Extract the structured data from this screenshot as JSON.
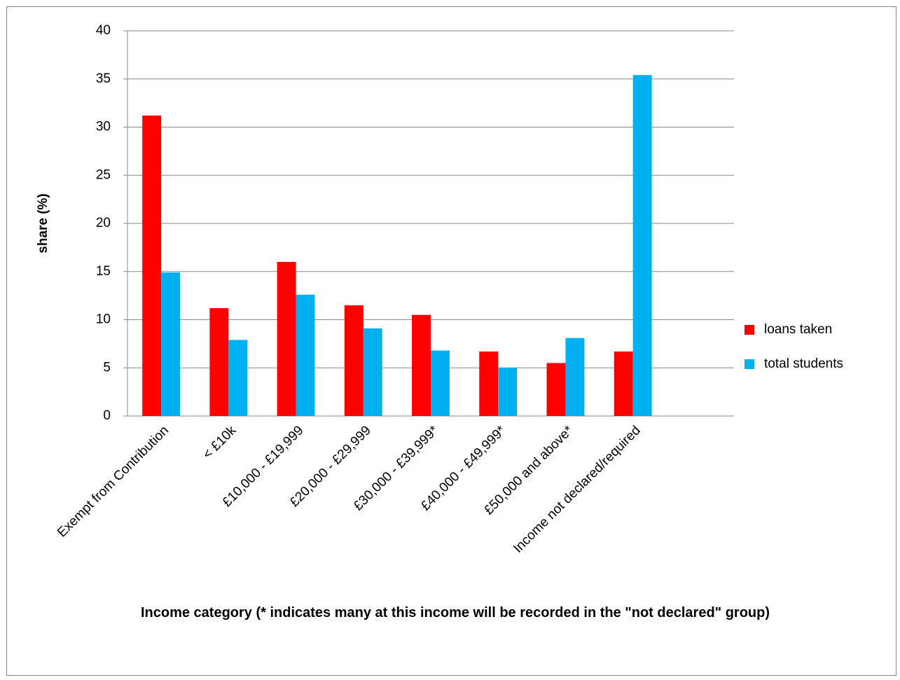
{
  "chart_data": {
    "type": "bar",
    "x_label": "Income category (* indicates many at this income will be recorded in the \"not declared\" group)",
    "y_label": "share (%)",
    "categories": [
      "Exempt from Contribution",
      "< £10k",
      "£10,000 - £19,999",
      "£20,000 - £29,999",
      "£30,000 - £39,999*",
      "£40,000 - £49,999*",
      "£50,000 and above*",
      "Income not declared/required",
      null
    ],
    "series": [
      {
        "name": "loans taken",
        "color": "#ff0000",
        "values": [
          31.2,
          11.2,
          16.0,
          11.5,
          10.5,
          6.7,
          5.5,
          6.7,
          null
        ]
      },
      {
        "name": "total students",
        "color": "#00b0f0",
        "values": [
          14.9,
          7.9,
          12.6,
          9.1,
          6.8,
          5.0,
          8.1,
          35.4,
          null
        ]
      }
    ],
    "ylim": [
      0,
      40
    ],
    "yticks": [
      0,
      5,
      10,
      15,
      20,
      25,
      30,
      35,
      40
    ],
    "grid": true,
    "legend": "right"
  }
}
